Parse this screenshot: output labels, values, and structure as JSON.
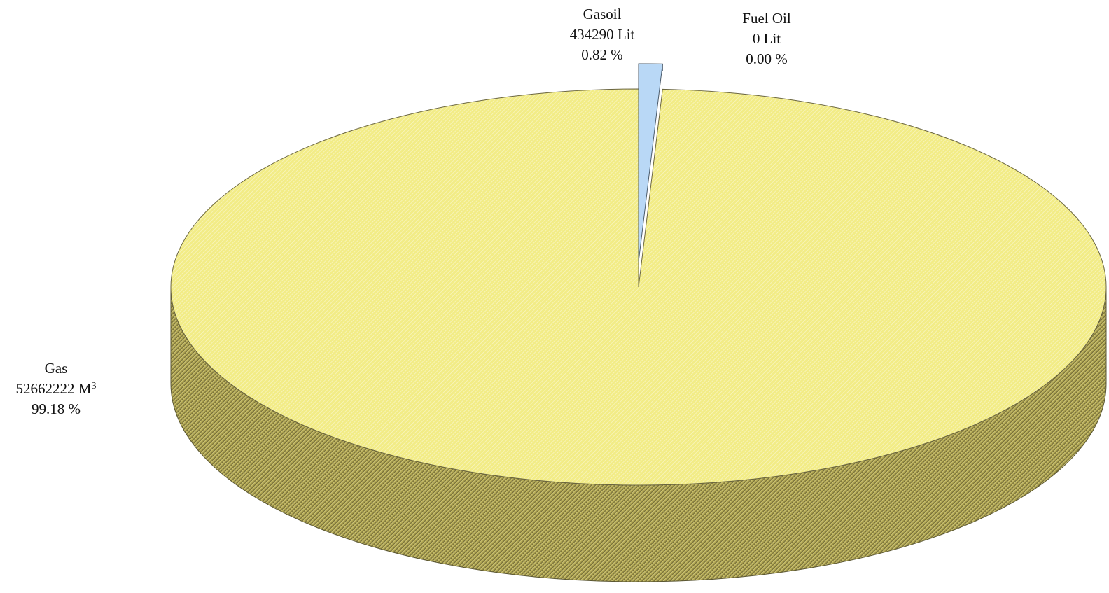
{
  "chart_data": {
    "type": "pie",
    "style": "3d",
    "title": "",
    "slices": [
      {
        "name": "Gas",
        "value": 52662222,
        "value_text": "52662222 M",
        "unit_superscript": "3",
        "percent": 99.18,
        "percent_text": "99.18 %",
        "color": "#f2ec86",
        "side_color": "#b8ae58"
      },
      {
        "name": "Gasoil",
        "value": 434290,
        "value_text": "434290 Lit",
        "percent": 0.82,
        "percent_text": "0.82 %",
        "color": "#b9d8f6",
        "exploded": true
      },
      {
        "name": "Fuel Oil",
        "value": 0,
        "value_text": "0 Lit",
        "percent": 0.0,
        "percent_text": "0.00 %",
        "color": "#d9d9d9"
      }
    ]
  }
}
